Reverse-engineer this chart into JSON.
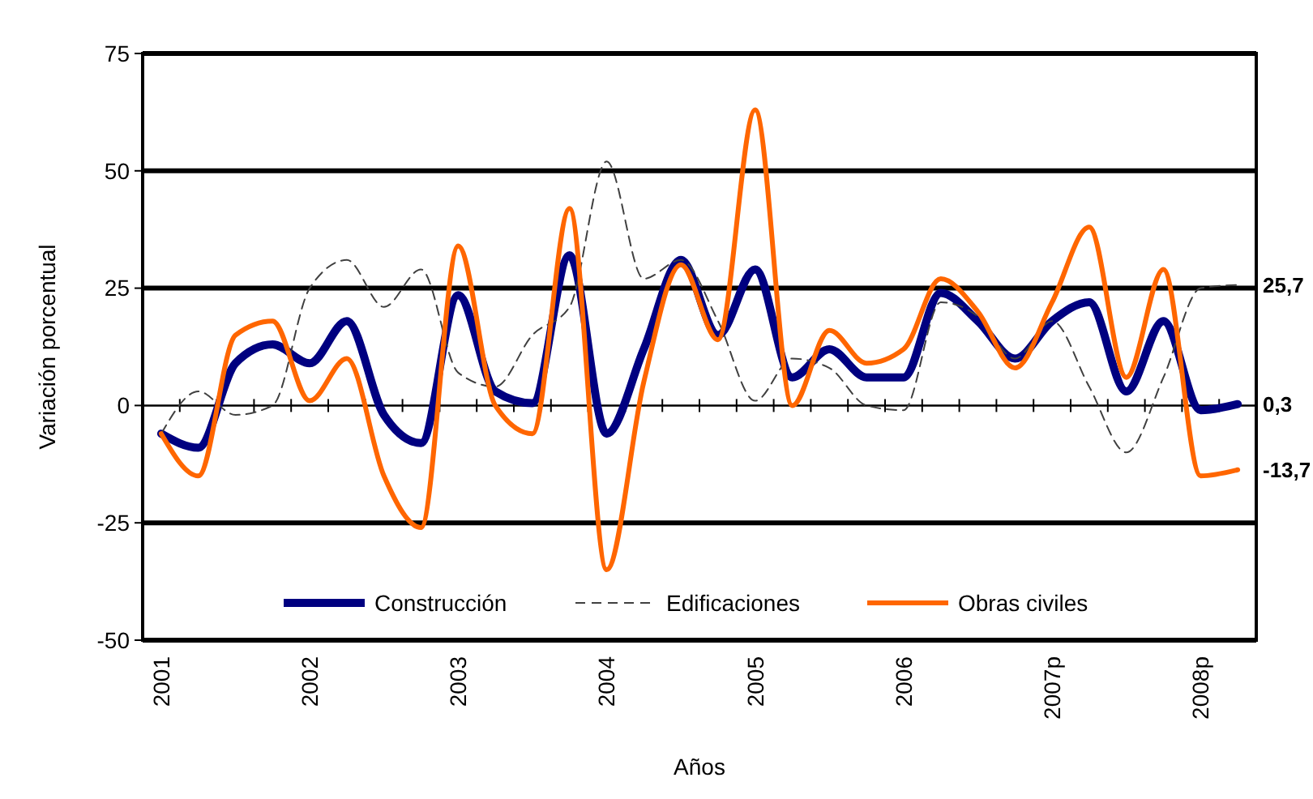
{
  "chart_data": {
    "type": "line",
    "xlabel": "Años",
    "ylabel": "Variación porcentual",
    "categories": [
      "2001",
      null,
      null,
      null,
      "2002",
      null,
      null,
      null,
      "2003",
      null,
      null,
      null,
      "2004",
      null,
      null,
      null,
      "2005",
      null,
      null,
      null,
      "2006",
      null,
      null,
      null,
      "2007p",
      null,
      null,
      null,
      "2008p",
      null
    ],
    "ylim": [
      -50,
      75
    ],
    "yticks": [
      -50,
      -25,
      0,
      25,
      50,
      75
    ],
    "grid": "y",
    "legend": "bottom",
    "series": [
      {
        "name": "Construcción",
        "color": "#000080",
        "values": [
          -6,
          -9,
          9,
          13,
          9,
          18,
          -2,
          -8,
          23.5,
          3,
          0.5,
          32,
          -6,
          12,
          31,
          15,
          29,
          6,
          12,
          6,
          6,
          24,
          18,
          10,
          18,
          22,
          3,
          18,
          -1,
          0.3
        ],
        "value_labels": [
          null,
          null,
          null,
          null,
          null,
          null,
          null,
          null,
          null,
          null,
          null,
          null,
          null,
          null,
          null,
          null,
          null,
          null,
          null,
          null,
          null,
          null,
          null,
          null,
          null,
          null,
          null,
          null,
          null,
          "0,3"
        ]
      },
      {
        "name": "Edificaciones",
        "color": "#404040",
        "line_style": "dashed",
        "values": [
          -6,
          3,
          -2,
          0,
          25,
          31,
          21,
          29,
          7,
          4,
          15,
          21,
          52,
          27,
          31,
          18,
          1,
          10,
          8,
          0,
          -1,
          22,
          19,
          10,
          18,
          4,
          -10,
          6,
          25,
          25.7
        ],
        "value_labels": [
          null,
          null,
          null,
          null,
          null,
          null,
          null,
          null,
          null,
          null,
          null,
          null,
          null,
          null,
          null,
          null,
          null,
          null,
          null,
          null,
          null,
          null,
          null,
          null,
          null,
          null,
          null,
          null,
          null,
          "25,7"
        ]
      },
      {
        "name": "Obras civiles",
        "color": "#ff6600",
        "values": [
          -6,
          -15,
          15,
          18,
          1,
          10,
          -15,
          -26,
          34,
          0,
          -6,
          42,
          -35,
          5,
          30,
          14,
          63,
          0,
          16,
          9,
          12,
          27,
          20,
          8,
          22,
          38,
          6,
          29,
          -15,
          -13.7
        ],
        "value_labels": [
          null,
          null,
          null,
          null,
          null,
          null,
          null,
          null,
          null,
          null,
          null,
          null,
          null,
          null,
          null,
          null,
          null,
          null,
          null,
          null,
          null,
          null,
          null,
          null,
          null,
          null,
          null,
          null,
          null,
          "-13,7"
        ]
      }
    ]
  }
}
